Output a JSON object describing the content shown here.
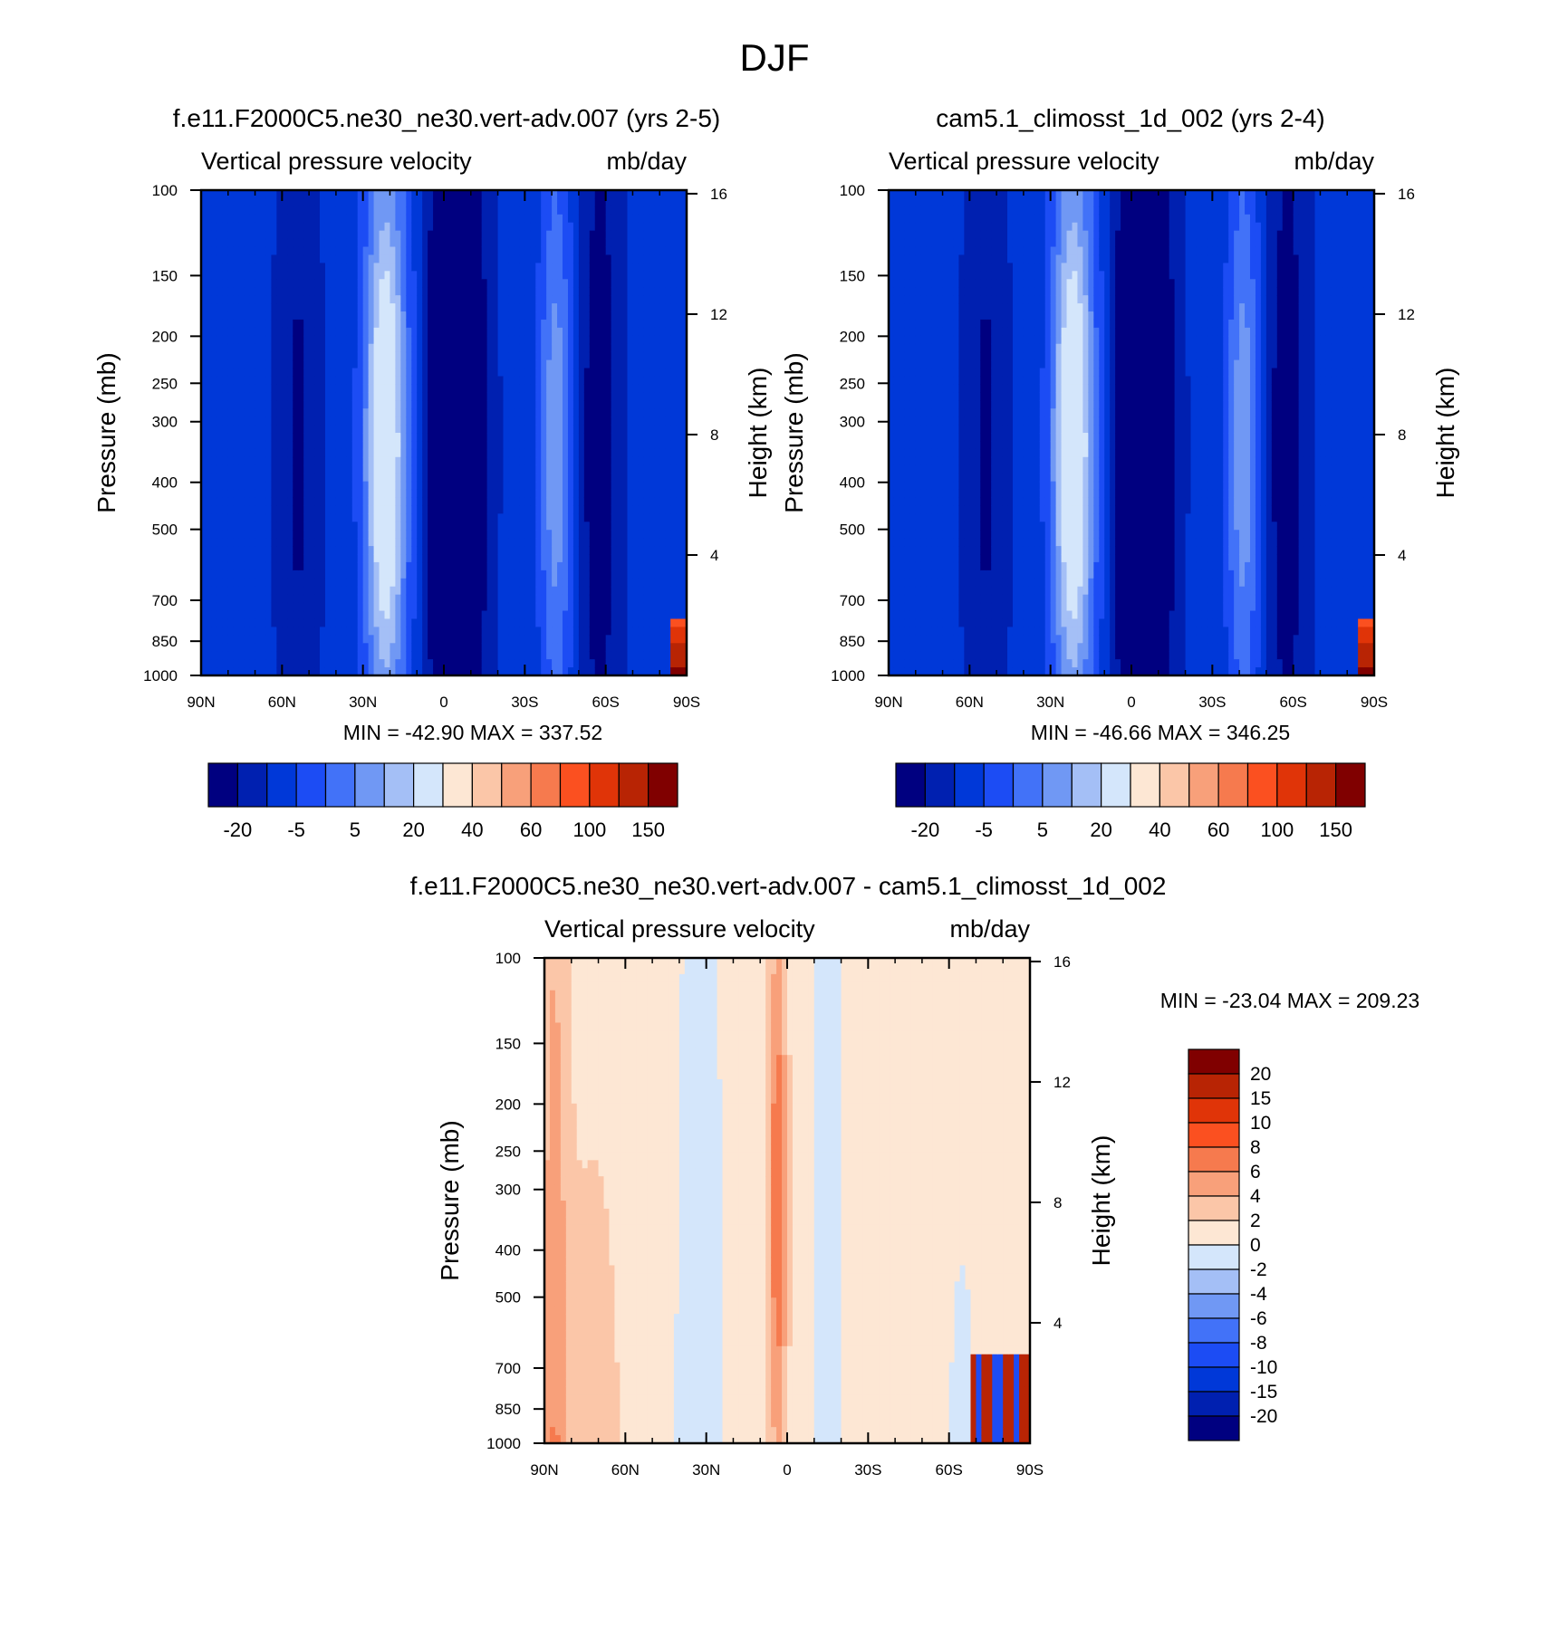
{
  "figure_title": "DJF",
  "colors": {
    "base_palette": [
      "#000080",
      "#0020b0",
      "#0038d8",
      "#1c4cf4",
      "#4272f8",
      "#7098f4",
      "#a4bff6",
      "#d4e6fb",
      "#fde7d4",
      "#fbc6a8",
      "#f8a07a",
      "#f67a4e",
      "#fb5020",
      "#e03408",
      "#b82404",
      "#800000"
    ],
    "diff_palette": [
      "#000080",
      "#0020b0",
      "#0038d8",
      "#1c4cf4",
      "#4272f8",
      "#7098f4",
      "#a4bff6",
      "#d4e6fb",
      "#fde7d4",
      "#fbc6a8",
      "#f8a07a",
      "#f67a4e",
      "#fb5020",
      "#e03408",
      "#b82404",
      "#800000"
    ]
  },
  "chart_data": [
    {
      "type": "heatmap",
      "title": "f.e11.F2000C5.ne30_ne30.vert-adv.007 (yrs 2-5)",
      "left_label": "Vertical pressure velocity",
      "right_label": "mb/day",
      "ylabel": "Pressure (mb)",
      "y2label": "Height (km)",
      "x_ticks": [
        "90N",
        "60N",
        "30N",
        "0",
        "30S",
        "60S",
        "90S"
      ],
      "y_ticks": [
        "100",
        "150",
        "200",
        "250",
        "300",
        "400",
        "500",
        "700",
        "850",
        "1000"
      ],
      "y2_ticks": [
        "4",
        "8",
        "12",
        "16"
      ],
      "stats": "MIN = -42.90  MAX = 337.52",
      "colorbar_labels": [
        "-20",
        "-5",
        "5",
        "20",
        "40",
        "60",
        "100",
        "150"
      ],
      "minmax": [
        -42.9,
        337.52
      ]
    },
    {
      "type": "heatmap",
      "title": "cam5.1_climosst_1d_002 (yrs 2-4)",
      "left_label": "Vertical pressure velocity",
      "right_label": "mb/day",
      "ylabel": "Pressure (mb)",
      "y2label": "Height (km)",
      "x_ticks": [
        "90N",
        "60N",
        "30N",
        "0",
        "30S",
        "60S",
        "90S"
      ],
      "y_ticks": [
        "100",
        "150",
        "200",
        "250",
        "300",
        "400",
        "500",
        "700",
        "850",
        "1000"
      ],
      "y2_ticks": [
        "4",
        "8",
        "12",
        "16"
      ],
      "stats": "MIN = -46.66  MAX = 346.25",
      "colorbar_labels": [
        "-20",
        "-5",
        "5",
        "20",
        "40",
        "60",
        "100",
        "150"
      ],
      "minmax": [
        -46.66,
        346.25
      ]
    },
    {
      "type": "heatmap",
      "title": "f.e11.F2000C5.ne30_ne30.vert-adv.007 - cam5.1_climosst_1d_002",
      "left_label": "Vertical pressure velocity",
      "right_label": "mb/day",
      "ylabel": "Pressure (mb)",
      "y2label": "Height (km)",
      "x_ticks": [
        "90N",
        "60N",
        "30N",
        "0",
        "30S",
        "60S",
        "90S"
      ],
      "y_ticks": [
        "100",
        "150",
        "200",
        "250",
        "300",
        "400",
        "500",
        "700",
        "850",
        "1000"
      ],
      "y2_ticks": [
        "4",
        "8",
        "12",
        "16"
      ],
      "stats": "MIN = -23.04  MAX = 209.23",
      "colorbar_labels": [
        "20",
        "15",
        "10",
        "8",
        "6",
        "4",
        "2",
        "0",
        "-2",
        "-4",
        "-6",
        "-8",
        "-10",
        "-15",
        "-20"
      ],
      "minmax": [
        -23.04,
        209.23
      ]
    }
  ]
}
